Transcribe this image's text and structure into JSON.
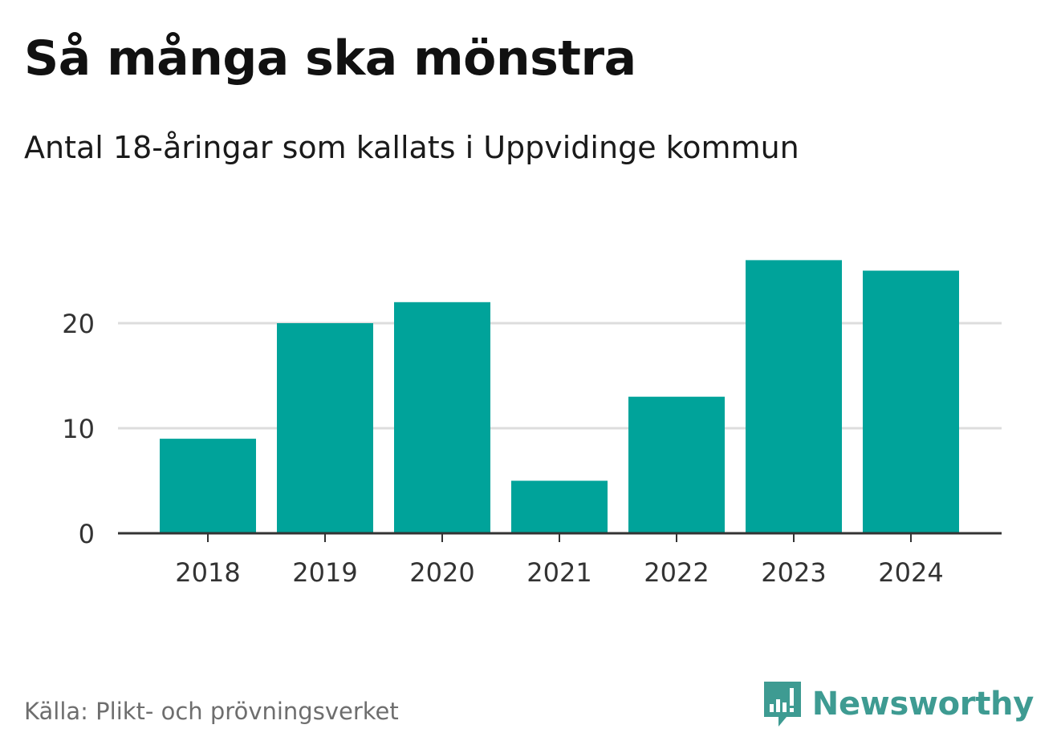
{
  "title": "Så många ska mönstra",
  "subtitle": "Antal 18-åringar som kallats i Uppvidinge kommun",
  "source": "Källa: Plikt- och prövningsverket",
  "brand": "Newsworthy",
  "colors": {
    "bar": "#00a39a",
    "grid": "#dddddd",
    "axis": "#333333",
    "brand": "#3e9b92"
  },
  "chart_data": {
    "type": "bar",
    "categories": [
      "2018",
      "2019",
      "2020",
      "2021",
      "2022",
      "2023",
      "2024"
    ],
    "values": [
      9,
      20,
      22,
      5,
      13,
      26,
      25
    ],
    "yticks": [
      0,
      10,
      20
    ],
    "ylim": [
      0,
      26
    ],
    "grid": true,
    "xlabel": "",
    "ylabel": ""
  }
}
